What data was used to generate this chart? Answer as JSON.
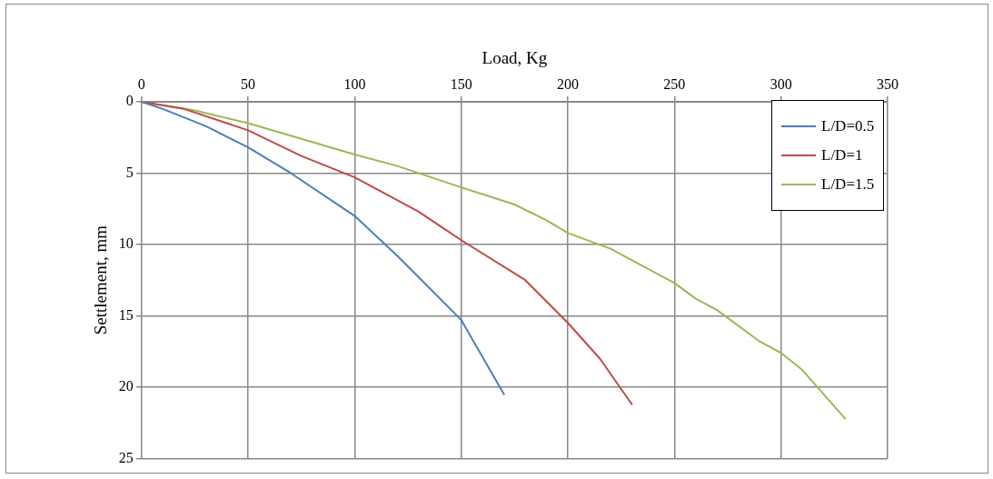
{
  "chart_data": {
    "type": "line",
    "xlabel": "Load, Kg",
    "ylabel": "Settlement, mm",
    "xlim": [
      0,
      350
    ],
    "xticks": [
      0,
      50,
      100,
      150,
      200,
      250,
      300,
      350
    ],
    "ylim": [
      25,
      0
    ],
    "yticks": [
      0,
      5,
      10,
      15,
      20,
      25
    ],
    "grid": true,
    "legend": "top right",
    "marker": "none",
    "line_style": "solid",
    "series": [
      {
        "name": "L/D=0.5",
        "color": "#4a7ebb",
        "x": [
          0,
          10,
          30,
          50,
          70,
          100,
          120,
          130,
          150,
          170
        ],
        "values": [
          0,
          0.5,
          1.7,
          3.2,
          5,
          8,
          10.8,
          12.3,
          15.3,
          20.5
        ]
      },
      {
        "name": "L/D=1",
        "color": "#be4b48",
        "x": [
          0,
          20,
          50,
          75,
          100,
          130,
          140,
          150,
          180,
          200,
          215,
          230
        ],
        "values": [
          0,
          0.5,
          2,
          3.8,
          5.3,
          7.7,
          8.7,
          9.7,
          12.5,
          15.5,
          18,
          21.2
        ]
      },
      {
        "name": "L/D=1.5",
        "color": "#98b954",
        "x": [
          0,
          25,
          50,
          100,
          120,
          150,
          175,
          190,
          200,
          220,
          250,
          260,
          270,
          290,
          300,
          310,
          330
        ],
        "values": [
          0,
          0.6,
          1.5,
          3.7,
          4.5,
          6,
          7.2,
          8.3,
          9.2,
          10.3,
          12.7,
          13.8,
          14.6,
          16.8,
          17.6,
          18.8,
          22.2
        ]
      }
    ]
  }
}
